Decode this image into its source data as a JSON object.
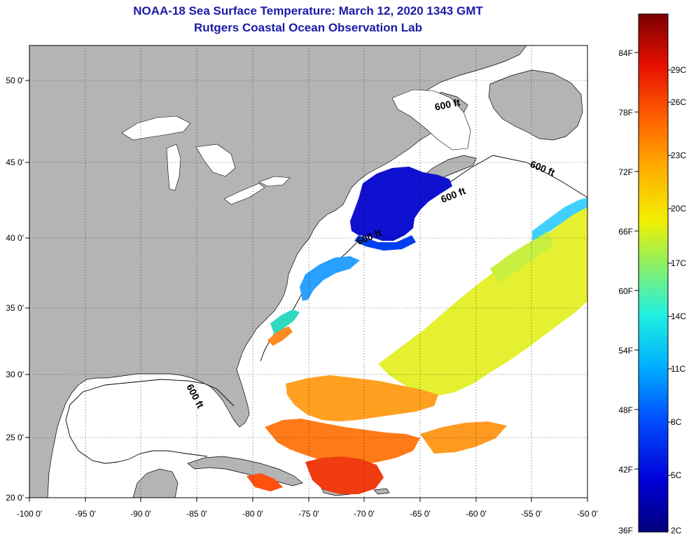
{
  "header": {
    "title": "NOAA-18 Sea Surface Temperature:  March 12, 2020 1343 GMT",
    "subtitle": "Rutgers Coastal Ocean Observation Lab"
  },
  "axes": {
    "lon_labels": [
      "-100 0'",
      "-95 0'",
      "-90 0'",
      "-85 0'",
      "-80 0'",
      "-75 0'",
      "-70 0'",
      "-65 0'",
      "-60 0'",
      "-55 0'",
      "-50 0'"
    ],
    "lat_labels": [
      "50 0'",
      "45 0'",
      "40 0'",
      "35 0'",
      "30 0'",
      "25 0'",
      "20 0'"
    ]
  },
  "contour_labels": [
    "600 ft",
    "600 ft",
    "600 ft",
    "600 ft",
    "600 ft"
  ],
  "colorbar": {
    "fahrenheit": [
      "84F",
      "78F",
      "72F",
      "66F",
      "60F",
      "54F",
      "48F",
      "42F",
      "36F"
    ],
    "celsius": [
      "29C",
      "26C",
      "23C",
      "20C",
      "17C",
      "14C",
      "11C",
      "8C",
      "5C",
      "2C"
    ]
  },
  "colors": {
    "land": "#b4b4b4",
    "ocean": "#ffffff",
    "title": "#1a1aa8"
  }
}
